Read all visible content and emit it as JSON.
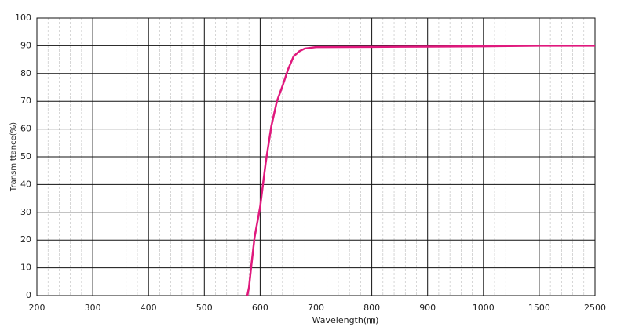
{
  "chart_data": {
    "type": "line",
    "x_label": "Wavelength(㎚)",
    "y_label": "Transmittance(%)",
    "x": [
      577,
      580,
      584,
      590,
      600,
      610,
      620,
      630,
      640,
      650,
      660,
      670,
      680,
      700,
      800,
      900,
      1000,
      1500,
      2500
    ],
    "series": [
      {
        "name": "Transmittance",
        "color": "#e0197d",
        "values": [
          0,
          3,
          10.5,
          21,
          32,
          48,
          61,
          70,
          75.5,
          81.5,
          86.2,
          88,
          89,
          89.5,
          89.6,
          89.7,
          89.8,
          90,
          90
        ]
      }
    ],
    "xlim": [
      200,
      2500
    ],
    "xticks": [
      200,
      300,
      400,
      500,
      600,
      700,
      800,
      900,
      1000,
      1500,
      2500
    ],
    "ylim": [
      0,
      100
    ],
    "yticks": [
      0,
      10,
      20,
      30,
      40,
      50,
      60,
      70,
      80,
      90,
      100
    ],
    "grid": true
  }
}
